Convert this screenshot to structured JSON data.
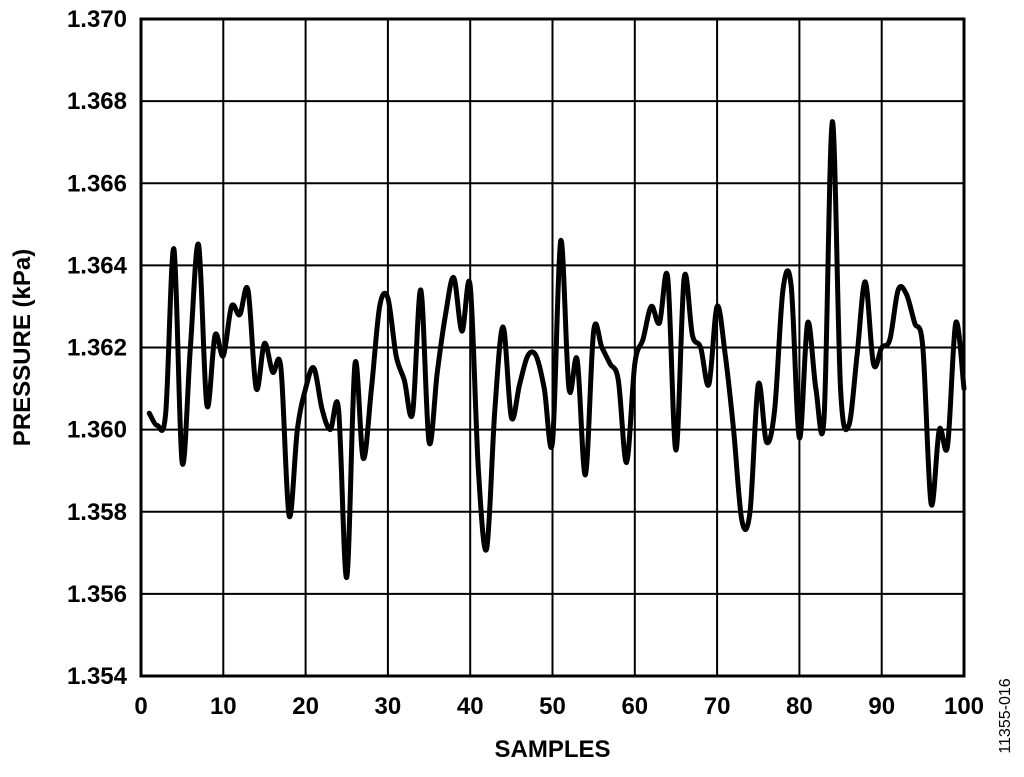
{
  "chart_data": {
    "type": "line",
    "xlabel": "SAMPLES",
    "ylabel": "PRESSURE (kPa)",
    "xlim": [
      0,
      100
    ],
    "ylim": [
      1.354,
      1.37
    ],
    "x_ticks": [
      "0",
      "10",
      "20",
      "30",
      "40",
      "50",
      "60",
      "70",
      "80",
      "90",
      "100"
    ],
    "y_ticks": [
      "1.354",
      "1.356",
      "1.358",
      "1.360",
      "1.362",
      "1.364",
      "1.366",
      "1.368",
      "1.370"
    ],
    "grid": true,
    "line_color": "#000000",
    "figure_id": "11355-016",
    "series": [
      {
        "x": [
          1,
          2,
          3,
          4,
          5,
          6,
          7,
          8,
          9,
          10,
          11,
          12,
          13,
          14,
          15,
          16,
          17,
          18,
          19,
          20,
          21,
          22,
          23,
          24,
          25,
          26,
          27,
          28,
          29,
          30,
          31,
          32,
          33,
          34,
          35,
          36,
          37,
          38,
          39,
          40,
          41,
          42,
          43,
          44,
          45,
          46,
          47,
          48,
          49,
          50,
          51,
          52,
          53,
          54,
          55,
          56,
          57,
          58,
          59,
          60,
          61,
          62,
          63,
          64,
          65,
          66,
          67,
          68,
          69,
          70,
          71,
          72,
          73,
          74,
          75,
          76,
          77,
          78,
          79,
          80,
          81,
          82,
          83,
          84,
          85,
          86,
          87,
          88,
          89,
          90,
          91,
          92,
          93,
          94,
          95,
          96,
          97,
          98,
          99,
          100
        ],
        "y": [
          1.3604,
          1.3601,
          1.3604,
          1.3644,
          1.3592,
          1.362,
          1.3645,
          1.3606,
          1.3623,
          1.3618,
          1.363,
          1.3628,
          1.3634,
          1.361,
          1.3621,
          1.3614,
          1.3615,
          1.3579,
          1.36,
          1.361,
          1.3615,
          1.3605,
          1.36,
          1.3605,
          1.3564,
          1.3616,
          1.3593,
          1.361,
          1.363,
          1.3632,
          1.3618,
          1.3612,
          1.3604,
          1.3634,
          1.3597,
          1.3614,
          1.3628,
          1.3637,
          1.3624,
          1.3635,
          1.359,
          1.3571,
          1.3605,
          1.3625,
          1.3603,
          1.3611,
          1.3618,
          1.3618,
          1.361,
          1.3597,
          1.3646,
          1.361,
          1.3617,
          1.3589,
          1.3624,
          1.362,
          1.3616,
          1.3612,
          1.3592,
          1.3616,
          1.3622,
          1.363,
          1.3626,
          1.3637,
          1.3595,
          1.3637,
          1.3623,
          1.362,
          1.3611,
          1.363,
          1.3618,
          1.36,
          1.3578,
          1.358,
          1.3611,
          1.3597,
          1.3605,
          1.3634,
          1.3635,
          1.3598,
          1.3626,
          1.361,
          1.3603,
          1.3675,
          1.361,
          1.3601,
          1.3618,
          1.3636,
          1.3616,
          1.362,
          1.3622,
          1.3634,
          1.3633,
          1.3626,
          1.362,
          1.3582,
          1.36,
          1.3596,
          1.3626,
          1.361
        ]
      }
    ]
  }
}
